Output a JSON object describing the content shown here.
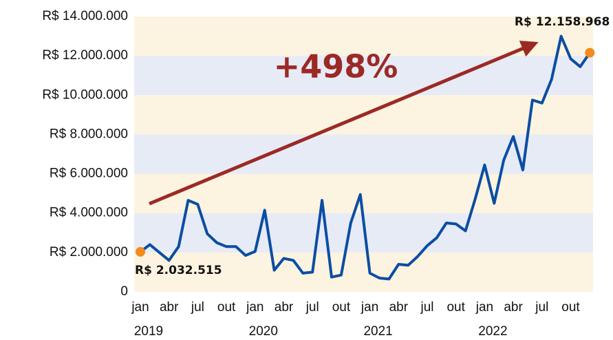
{
  "chart_data": {
    "type": "line",
    "categories": [
      "jan",
      null,
      null,
      "abr",
      null,
      null,
      "jul",
      null,
      null,
      "out",
      null,
      null,
      "jan",
      null,
      null,
      "abr",
      null,
      null,
      "jul",
      null,
      null,
      "out",
      null,
      null,
      "jan",
      null,
      null,
      "abr",
      null,
      null,
      "jul",
      null,
      null,
      "out",
      null,
      null,
      "jan",
      null,
      null,
      "abr",
      null,
      null,
      "jul",
      null,
      null,
      "out",
      null,
      null
    ],
    "years": [
      "2019",
      "2020",
      "2021",
      "2022"
    ],
    "series": [
      {
        "color": "#0b4ea2",
        "values": [
          2032515,
          2400000,
          2000000,
          1600000,
          2300000,
          4650000,
          4450000,
          2950000,
          2500000,
          2300000,
          2300000,
          1850000,
          2050000,
          4150000,
          1100000,
          1700000,
          1600000,
          950000,
          1000000,
          4650000,
          750000,
          850000,
          3500000,
          4950000,
          950000,
          700000,
          650000,
          1400000,
          1350000,
          1800000,
          2350000,
          2750000,
          3500000,
          3450000,
          3100000,
          4700000,
          6450000,
          4500000,
          6700000,
          7900000,
          6200000,
          9750000,
          9600000,
          10800000,
          13000000,
          11850000,
          11450000,
          12158968
        ],
        "value_labels": [
          "R$ 2.032.515",
          null,
          null,
          null,
          null,
          null,
          null,
          null,
          null,
          null,
          null,
          null,
          null,
          null,
          null,
          null,
          null,
          null,
          null,
          null,
          null,
          null,
          null,
          null,
          null,
          null,
          null,
          null,
          null,
          null,
          null,
          null,
          null,
          null,
          null,
          null,
          null,
          null,
          null,
          null,
          null,
          null,
          null,
          null,
          null,
          null,
          null,
          "R$ 12.158.968"
        ]
      }
    ],
    "annotations": [
      "+498%"
    ],
    "ylim": [
      0,
      14000000
    ],
    "yticks": [
      0,
      {
        "value": 2000000,
        "label": "R$ 2.000.000"
      },
      {
        "value": 4000000,
        "label": "R$ 4.000.000"
      },
      {
        "value": 6000000,
        "label": "R$ 6.000.000"
      },
      {
        "value": 8000000,
        "label": "R$ 8.000.000"
      },
      {
        "value": 10000000,
        "label": "R$ 10.000.000"
      },
      {
        "value": 12000000,
        "label": "R$ 12.000.000"
      },
      {
        "value": 14000000,
        "label": "R$ 14.000.000"
      }
    ],
    "band_colors": [
      "#fdf3e1",
      "#e7ebf6"
    ],
    "marker_color": "#f28a1e"
  }
}
